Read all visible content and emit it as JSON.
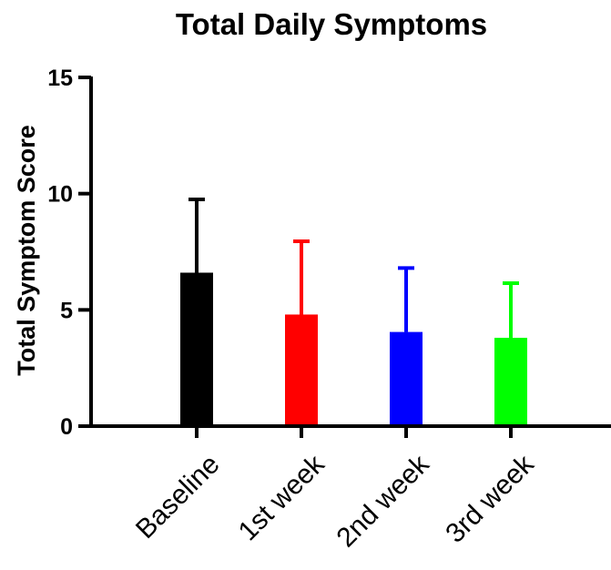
{
  "chart_data": {
    "type": "bar",
    "title": "Total Daily Symptoms",
    "xlabel": "",
    "ylabel": "Total Symptom Score",
    "ylim": [
      0,
      15
    ],
    "yticks": [
      0,
      5,
      10,
      15
    ],
    "categories": [
      "Baseline",
      "1st week",
      "2nd week",
      "3rd week"
    ],
    "values": [
      6.6,
      4.8,
      4.05,
      3.8
    ],
    "error_upper": [
      9.75,
      7.95,
      6.8,
      6.15
    ],
    "colors": [
      "#000000",
      "#ff0000",
      "#0000ff",
      "#00ff00"
    ],
    "grid": false,
    "legend": "none"
  }
}
